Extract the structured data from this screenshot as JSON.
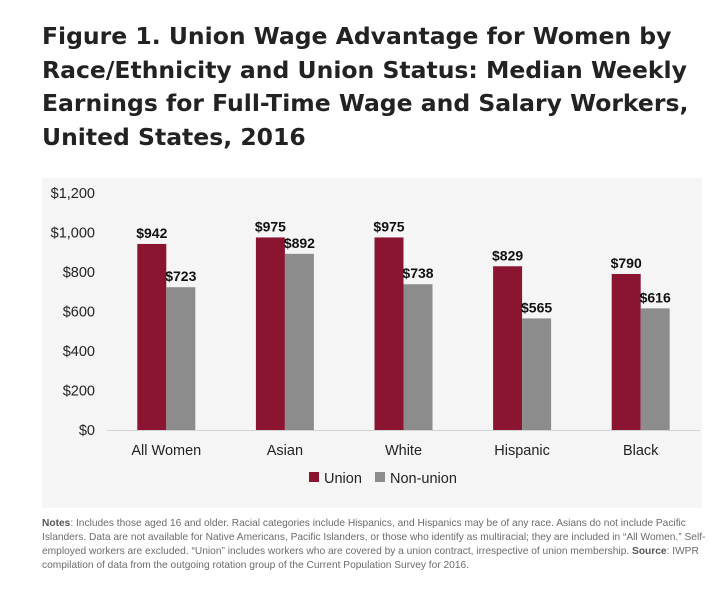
{
  "title": "Figure 1. Union Wage Advantage for Women by Race/Ethnicity and Union Status: Median Weekly Earnings for Full-Time Wage and Salary Workers, United States, 2016",
  "notes": {
    "label": "Notes",
    "text": ": Includes those aged 16 and older. Racial categories include Hispanics, and Hispanics may be of any race. Asians do not include Pacific Islanders. Data are not available for Native Americans, Pacific Islanders, or those who identify as multiracial; they are included in “All Women.” Self-employed workers are excluded. “Union” includes workers who are covered by a union contract, irrespective of union membership. ",
    "source_label": "Source",
    "source_text": ": IWPR compilation of data from the outgoing rotation group of the Current Population Survey for 2016."
  },
  "colors": {
    "union": "#8b1530",
    "nonunion": "#8c8c8c",
    "panel": "#f5f5f5"
  },
  "chart_data": {
    "type": "bar",
    "title": "",
    "xlabel": "",
    "ylabel": "",
    "categories": [
      "All Women",
      "Asian",
      "White",
      "Hispanic",
      "Black"
    ],
    "series": [
      {
        "name": "Union",
        "values": [
          942,
          975,
          975,
          829,
          790
        ],
        "labels": [
          "$942",
          "$975",
          "$975",
          "$829",
          "$790"
        ]
      },
      {
        "name": "Non-union",
        "values": [
          723,
          892,
          738,
          565,
          616
        ],
        "labels": [
          "$723",
          "$892",
          "$738",
          "$565",
          "$616"
        ]
      }
    ],
    "ylim": [
      0,
      1200
    ],
    "yticks": [
      0,
      200,
      400,
      600,
      800,
      1000,
      1200
    ],
    "ytick_labels": [
      "$0",
      "$200",
      "$400",
      "$600",
      "$800",
      "$1,000",
      "$1,200"
    ],
    "grid": false,
    "legend_position": "bottom-center"
  }
}
